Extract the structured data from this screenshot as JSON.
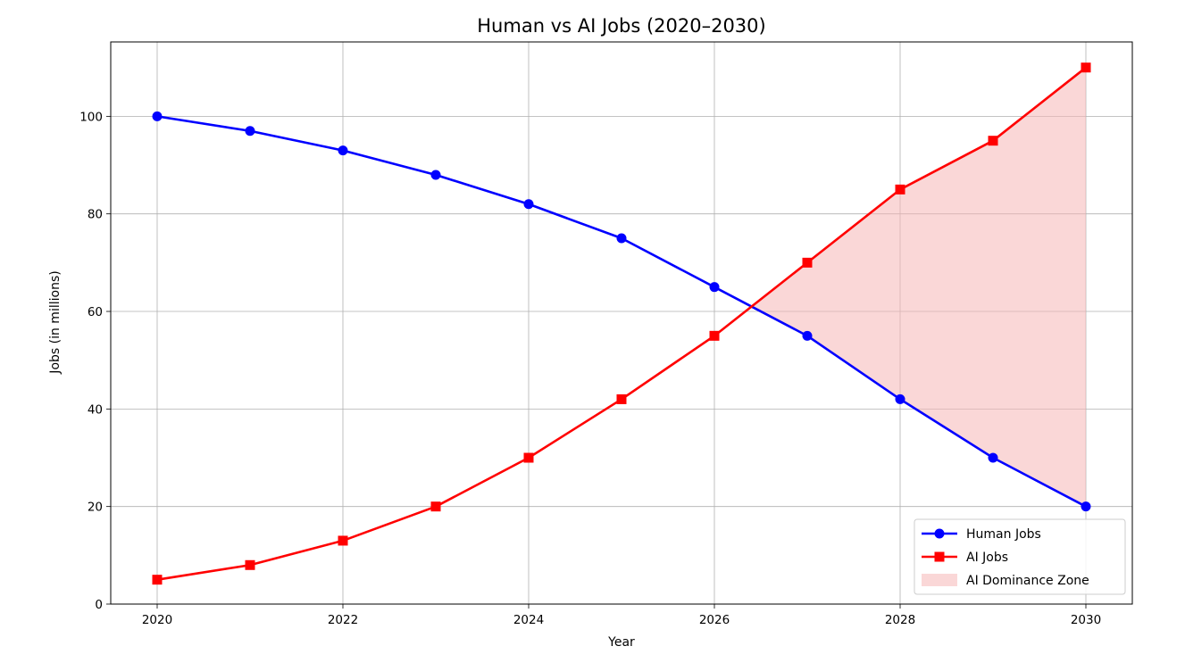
{
  "chart_data": {
    "type": "line",
    "title": "Human vs AI Jobs (2020–2030)",
    "xlabel": "Year",
    "ylabel": "Jobs (in millions)",
    "x": [
      2020,
      2021,
      2022,
      2023,
      2024,
      2025,
      2026,
      2027,
      2028,
      2029,
      2030
    ],
    "xlim": [
      2019.5,
      2030.5
    ],
    "ylim": [
      0,
      115.25
    ],
    "xticks": [
      "2020",
      "2022",
      "2024",
      "2026",
      "2028",
      "2030"
    ],
    "yticks": [
      "0",
      "20",
      "40",
      "60",
      "80",
      "100"
    ],
    "grid": true,
    "legend_position": "lower right",
    "series": [
      {
        "name": "Human Jobs",
        "values": [
          100,
          97,
          93,
          88,
          82,
          75,
          65,
          55,
          42,
          30,
          20
        ],
        "color": "#0000ff",
        "marker": "circle"
      },
      {
        "name": "AI Jobs",
        "values": [
          5,
          8,
          13,
          20,
          30,
          42,
          55,
          70,
          85,
          95,
          110
        ],
        "color": "#ff0000",
        "marker": "square"
      }
    ],
    "fill": {
      "name": "AI Dominance Zone",
      "between": [
        "Human Jobs",
        "AI Jobs"
      ],
      "where": "AI Jobs > Human Jobs",
      "color": "#f5b7b7"
    }
  }
}
